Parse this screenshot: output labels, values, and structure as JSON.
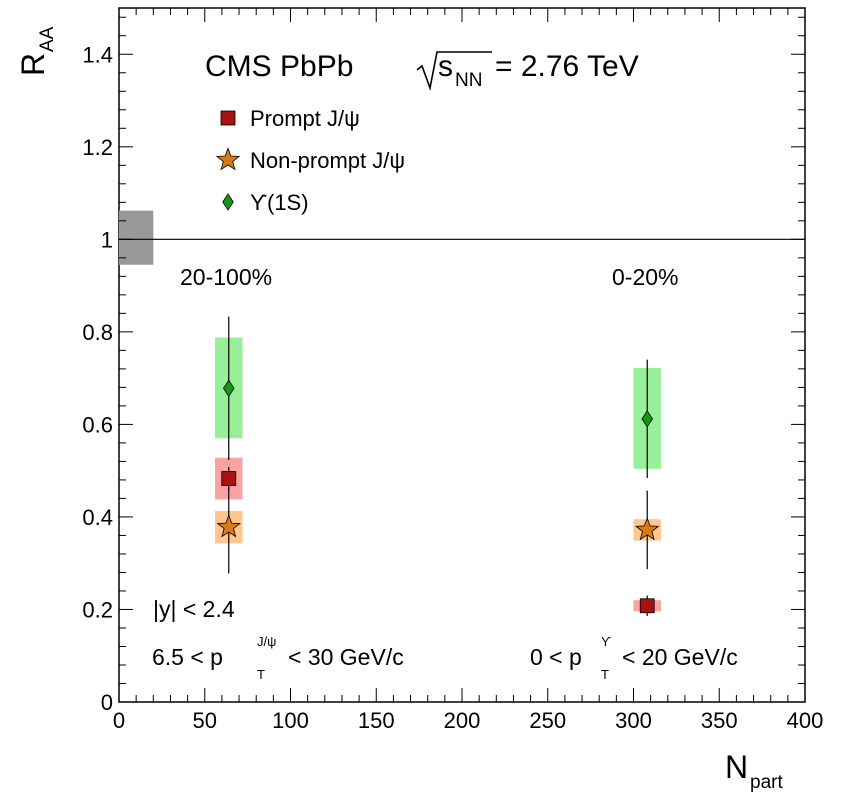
{
  "chart_data": {
    "type": "scatter",
    "title": {
      "experiment": "CMS PbPb",
      "energy_symbol": "s",
      "energy_subscript": "NN",
      "energy_value": "= 2.76 TeV"
    },
    "xlabel": {
      "main": "N",
      "sub": "part"
    },
    "ylabel": {
      "main": "R",
      "sub": "AA"
    },
    "xlim": [
      0,
      400
    ],
    "ylim": [
      0,
      1.5
    ],
    "x_ticks": [
      0,
      50,
      100,
      150,
      200,
      250,
      300,
      350,
      400
    ],
    "x_tick_labels": [
      "0",
      "50",
      "100",
      "150",
      "200",
      "250",
      "300",
      "350",
      "400"
    ],
    "y_ticks": [
      0,
      0.2,
      0.4,
      0.6,
      0.8,
      1.0,
      1.2,
      1.4
    ],
    "y_tick_labels": [
      "0",
      "0.2",
      "0.4",
      "0.6",
      "0.8",
      "1",
      "1.2",
      "1.4"
    ],
    "grid": false,
    "legend_position": "top-left",
    "reference_line": {
      "y": 1.0
    },
    "global_uncertainty_box": {
      "x": [
        0,
        20
      ],
      "y": [
        0.945,
        1.062
      ],
      "color": "#999999"
    },
    "series": [
      {
        "name": "Prompt J/ψ",
        "marker": "square",
        "color": "#aa1111",
        "box_color": "#f7a3a3",
        "points": [
          {
            "x": 64,
            "y": 0.483,
            "stat_err": [
              0.025,
              0.025
            ],
            "syst": [
              0.438,
              0.528
            ],
            "box_x": [
              56,
              72
            ]
          },
          {
            "x": 308,
            "y": 0.208,
            "stat_err": [
              0.022,
              0.022
            ],
            "syst": [
              0.196,
              0.22
            ],
            "box_x": [
              300,
              316
            ]
          }
        ]
      },
      {
        "name": "Non-prompt J/ψ",
        "marker": "star",
        "color": "#d77a18",
        "box_color": "#ffc68f",
        "points": [
          {
            "x": 64,
            "y": 0.378,
            "stat_err": [
              0.1,
              0.1
            ],
            "syst": [
              0.343,
              0.413
            ],
            "box_x": [
              56,
              72
            ]
          },
          {
            "x": 308,
            "y": 0.372,
            "stat_err": [
              0.085,
              0.085
            ],
            "syst": [
              0.349,
              0.395
            ],
            "box_x": [
              300,
              316
            ]
          }
        ]
      },
      {
        "name": "ϒ(1S)",
        "marker": "diamond",
        "color": "#119911",
        "box_color": "#99ee99",
        "points": [
          {
            "x": 64,
            "y": 0.678,
            "stat_err": [
              0.155,
              0.155
            ],
            "syst": [
              0.57,
              0.788
            ],
            "box_x": [
              56,
              72
            ]
          },
          {
            "x": 308,
            "y": 0.612,
            "stat_err": [
              0.128,
              0.128
            ],
            "syst": [
              0.504,
              0.722
            ],
            "box_x": [
              300,
              316
            ]
          }
        ]
      }
    ],
    "annotations": {
      "centrality_left": "20-100%",
      "centrality_right": "0-20%",
      "rapidity": "|y| < 2.4",
      "pt_jpsi_left": "6.5 < p",
      "pt_jpsi_sub": "T",
      "pt_jpsi_sup": "J/ψ",
      "pt_jpsi_right": "< 30 GeV/c",
      "pt_ups_left": "0 < p",
      "pt_ups_sub": "T",
      "pt_ups_sup": "ϒ",
      "pt_ups_right": "< 20 GeV/c"
    }
  }
}
